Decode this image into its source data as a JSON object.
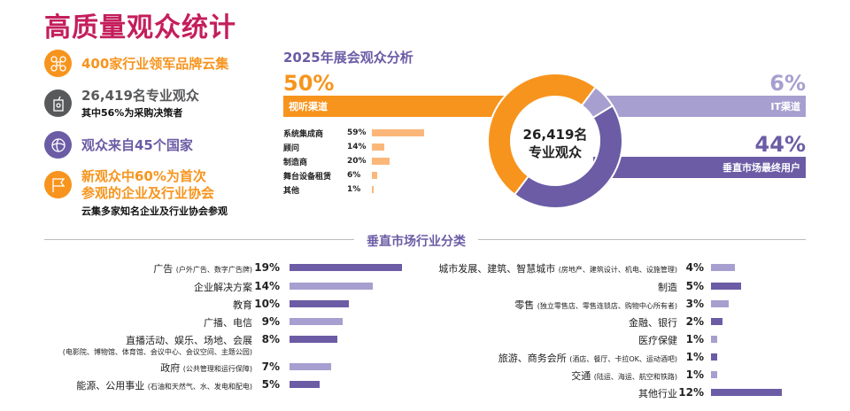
{
  "title": "高质量观众统计",
  "highlights": [
    {
      "icon": "drone-icon",
      "color": "#f7941d",
      "text": "400家行业领军品牌云集"
    },
    {
      "icon": "badge-icon",
      "color": "#58595b",
      "text": "26,419名专业观众",
      "sub": "其中56%为采购决策者"
    },
    {
      "icon": "globe-icon",
      "color": "#6b5ca5",
      "text": "观众来自45个国家"
    },
    {
      "icon": "flag-icon",
      "color": "#f7941d",
      "text": "新观众中60%为首次",
      "text2": "参观的企业及行业协会",
      "sub": "云集多家知名企业及行业协会参观"
    }
  ],
  "analysis": {
    "title": "2025年展会观众分析",
    "center_line1": "26,419名",
    "center_line2": "专业观众",
    "channels": [
      {
        "pct": "50%",
        "value": 50,
        "label": "视听渠道",
        "color": "#f7941d"
      },
      {
        "pct": "6%",
        "value": 6,
        "label": "IT渠道",
        "color": "#a79fcf"
      },
      {
        "pct": "44%",
        "value": 44,
        "label": "垂直市场最终用户",
        "color": "#6b5ca5"
      }
    ],
    "av_breakdown": [
      {
        "label": "系统集成商",
        "pct": "59%",
        "value": 59
      },
      {
        "label": "顾问",
        "pct": "14%",
        "value": 14
      },
      {
        "label": "制造商",
        "pct": "20%",
        "value": 20
      },
      {
        "label": "舞台设备租赁",
        "pct": "6%",
        "value": 6
      },
      {
        "label": "其他",
        "pct": "1%",
        "value": 1
      }
    ]
  },
  "vertical": {
    "title": "垂直市场行业分类",
    "left": [
      {
        "label": "广告",
        "note": "(户外广告、数字广告牌)",
        "pct": "19%",
        "value": 19,
        "shade": "dark"
      },
      {
        "label": "企业解决方案",
        "pct": "14%",
        "value": 14,
        "shade": "light"
      },
      {
        "label": "教育",
        "pct": "10%",
        "value": 10,
        "shade": "dark"
      },
      {
        "label": "广播、电信",
        "pct": "9%",
        "value": 9,
        "shade": "light"
      },
      {
        "label": "直播活动、娱乐、场地、会展",
        "note2": "(电影院、博物馆、体育馆、会议中心、会议空间、主题公园)",
        "pct": "8%",
        "value": 8,
        "shade": "dark"
      },
      {
        "label": "政府",
        "note": "(公共管理和运行保障)",
        "pct": "7%",
        "value": 7,
        "shade": "light"
      },
      {
        "label": "能源、公用事业",
        "note": "(石油和天然气、水、发电和配电)",
        "pct": "5%",
        "value": 5,
        "shade": "dark"
      }
    ],
    "right": [
      {
        "label": "城市发展、建筑、智慧城市",
        "note": "(房地产、建筑设计、机电、设施管理)",
        "pct": "4%",
        "value": 4,
        "shade": "light"
      },
      {
        "label": "制造",
        "pct": "5%",
        "value": 5,
        "shade": "dark"
      },
      {
        "label": "零售",
        "note": "(独立零售店、零售连锁店、购物中心所有者)",
        "pct": "3%",
        "value": 3,
        "shade": "light"
      },
      {
        "label": "金融、银行",
        "pct": "2%",
        "value": 2,
        "shade": "dark"
      },
      {
        "label": "医疗保健",
        "pct": "1%",
        "value": 1,
        "shade": "light"
      },
      {
        "label": "旅游、商务会所",
        "note": "(酒店、餐厅、卡拉OK、运动酒吧)",
        "pct": "1%",
        "value": 1,
        "shade": "dark"
      },
      {
        "label": "交通",
        "note": "(陆运、海运、航空和铁路)",
        "pct": "1%",
        "value": 1,
        "shade": "light"
      },
      {
        "label": "其他行业",
        "pct": "12%",
        "value": 12,
        "shade": "dark"
      }
    ],
    "colors": {
      "dark": "#6b5ca5",
      "light": "#a79fcf"
    }
  }
}
